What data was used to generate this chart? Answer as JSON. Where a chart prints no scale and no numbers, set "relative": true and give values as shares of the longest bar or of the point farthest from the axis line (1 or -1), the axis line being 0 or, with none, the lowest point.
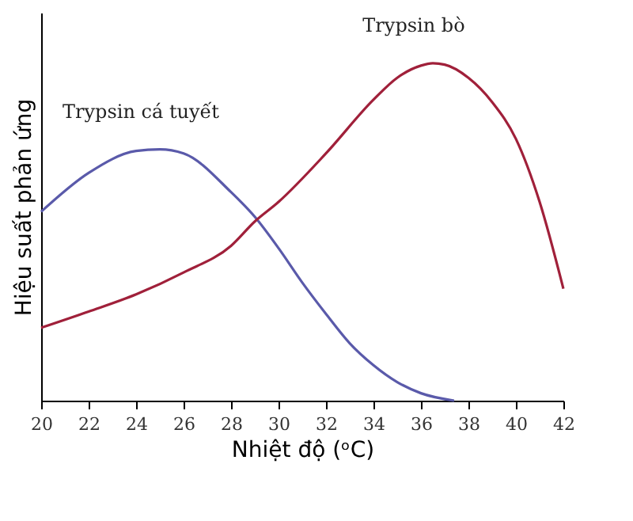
{
  "chart_data": {
    "type": "line",
    "relative": true,
    "xlabel": "Nhiệt độ (ᵒC)",
    "ylabel": "Hiệu suất phản ứng",
    "xlim": [
      20,
      42
    ],
    "xticks": [
      20,
      22,
      24,
      26,
      28,
      30,
      32,
      34,
      36,
      38,
      40,
      42
    ],
    "grid": false,
    "marker": "none",
    "line_style": "solid",
    "series": [
      {
        "name": "Trypsin cá tuyết",
        "color": "#5a5aaa",
        "x": [
          20,
          22,
          24,
          25,
          26,
          28,
          29,
          30,
          31,
          32,
          33,
          34,
          35,
          36,
          37.4
        ],
        "values": [
          0.56,
          0.675,
          0.74,
          0.745,
          0.733,
          0.618,
          0.545,
          0.452,
          0.35,
          0.257,
          0.17,
          0.105,
          0.055,
          0.022,
          0
        ]
      },
      {
        "name": "Trypsin bò",
        "color": "#a0203a",
        "x": [
          20,
          22,
          24,
          26,
          28,
          29,
          30,
          32,
          34,
          35,
          36,
          36.5,
          37,
          38,
          39,
          40,
          41,
          42
        ],
        "values": [
          0.216,
          0.264,
          0.315,
          0.38,
          0.459,
          0.531,
          0.589,
          0.733,
          0.892,
          0.957,
          0.993,
          1,
          0.996,
          0.957,
          0.885,
          0.776,
          0.589,
          0.332
        ]
      }
    ]
  }
}
